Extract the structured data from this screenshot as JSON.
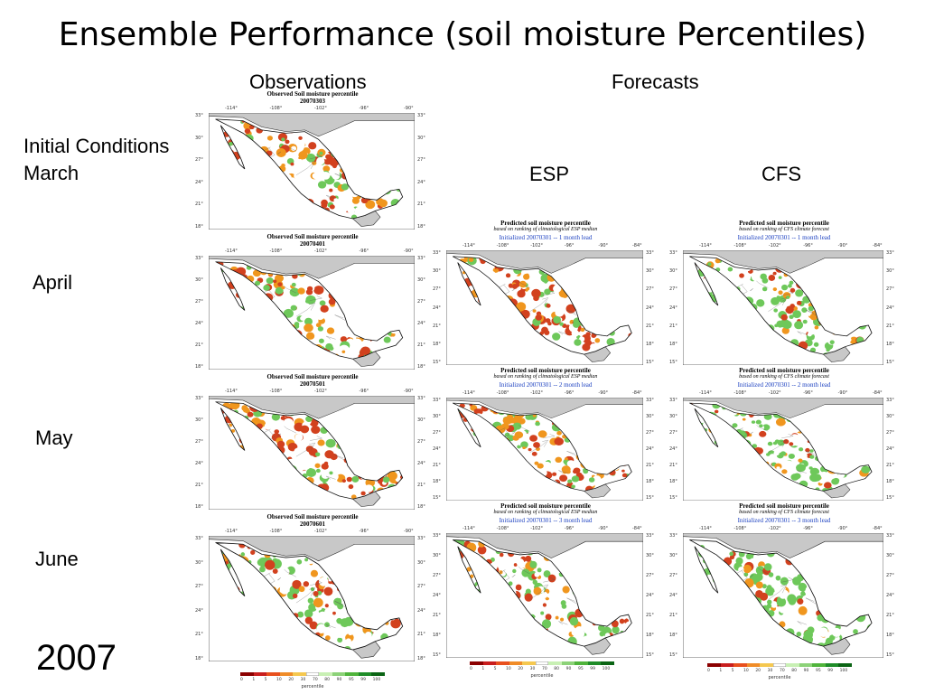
{
  "slide": {
    "title": "Ensemble Performance (soil moisture Percentiles)",
    "col_observations": "Observations",
    "col_forecasts": "Forecasts",
    "col_esp": "ESP",
    "col_cfs": "CFS",
    "row_march_line1": "Initial Conditions",
    "row_march_line2": "March",
    "row_april": "April",
    "row_may": "May",
    "row_june": "June",
    "year": "2007"
  },
  "map_axes": {
    "lon_ticks": [
      "-114°",
      "-108°",
      "-102°",
      "-96°",
      "-90°"
    ],
    "lon_ticks_fcst": [
      "-114°",
      "-108°",
      "-102°",
      "-96°",
      "-90°",
      "-84°"
    ],
    "lat_ticks": [
      "33°",
      "30°",
      "27°",
      "24°",
      "21°",
      "18°"
    ],
    "lat_ticks_fcst": [
      "33°",
      "30°",
      "27°",
      "24°",
      "21°",
      "18°",
      "15°"
    ]
  },
  "panels": {
    "obs_march": {
      "title": "Observed Soil moisture percentile",
      "date": "20070303",
      "wetness": 0.25
    },
    "obs_april": {
      "title": "Observed Soil moisture percentile",
      "date": "20070401",
      "wetness": 0.35
    },
    "obs_may": {
      "title": "Observed Soil moisture percentile",
      "date": "20070501",
      "wetness": 0.3
    },
    "obs_june": {
      "title": "Observed Soil moisture percentile",
      "date": "20070601",
      "wetness": 0.45
    },
    "esp_1": {
      "title": "Predicted soil moisture percentile",
      "subtitle": "based on ranking of climatological ESP median",
      "init": "Initialized 20070301 -- 1 month lead",
      "wetness": 0.2
    },
    "esp_2": {
      "title": "Predicted soil moisture percentile",
      "subtitle": "based on ranking of climatological ESP median",
      "init": "Initialized 20070301 -- 2 month lead",
      "wetness": 0.3
    },
    "esp_3": {
      "title": "Predicted soil moisture percentile",
      "subtitle": "based on ranking of climatological ESP median",
      "init": "Initialized 20070301 -- 3 month lead",
      "wetness": 0.4
    },
    "cfs_1": {
      "title": "Predicted soil moisture percentile",
      "subtitle": "based on ranking of CFS climate forecast",
      "init": "Initialized 20070301 -- 1 month lead",
      "wetness": 0.55
    },
    "cfs_2": {
      "title": "Predicted soil moisture percentile",
      "subtitle": "based on ranking of CFS climate forecast",
      "init": "Initialized 20070301 -- 2 month lead",
      "wetness": 0.7
    },
    "cfs_3": {
      "title": "Predicted soil moisture percentile",
      "subtitle": "based on ranking of CFS climate forecast",
      "init": "Initialized 20070301 -- 3 month lead",
      "wetness": 0.75
    }
  },
  "legend": {
    "name": "percentile",
    "labels": [
      "0",
      "1",
      "5",
      "10",
      "20",
      "30",
      "70",
      "80",
      "90",
      "95",
      "99",
      "100"
    ],
    "colors": [
      "#8b0000",
      "#c81e1e",
      "#e8501e",
      "#f08c28",
      "#f5c850",
      "#ffffff",
      "#c8f0b4",
      "#8cd278",
      "#50b43c",
      "#1e8c28",
      "#0a6414"
    ]
  },
  "colors": {
    "land_gray": "#c8c8c8",
    "ocean": "#ffffff",
    "dry": "#d2411e",
    "dry_mid": "#f0961e",
    "neutral": "#ffffff",
    "wet": "#6ec85a"
  }
}
